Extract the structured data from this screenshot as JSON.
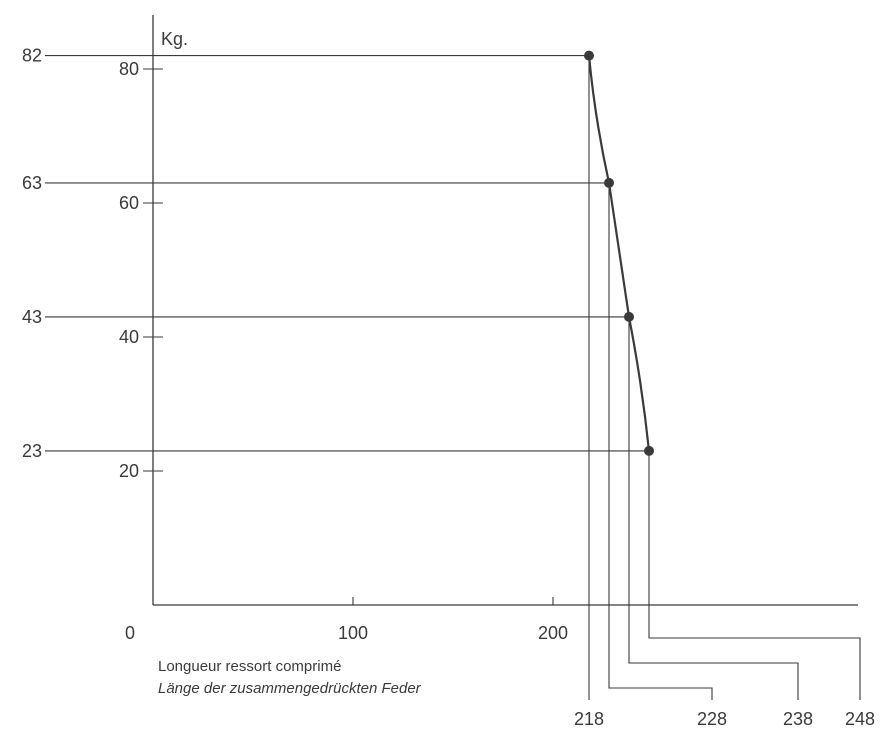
{
  "chart_data": {
    "type": "line",
    "title": "",
    "xlabel": "Longueur ressort comprimé",
    "xlabel_de": "Länge der zusammengedrückten Feder",
    "ylabel": "Kg.",
    "origin_label": "0",
    "xlim": [
      0,
      350
    ],
    "ylim": [
      0,
      92
    ],
    "x_ticks": [
      "100",
      "200"
    ],
    "y_ticks": [
      "20",
      "40",
      "60",
      "80"
    ],
    "grid": false,
    "series": [
      {
        "points": [
          {
            "x": 218,
            "y": 82,
            "x_label": "218",
            "y_label": "82"
          },
          {
            "x": 228,
            "y": 63,
            "x_label": "228",
            "y_label": "63"
          },
          {
            "x": 238,
            "y": 43,
            "x_label": "238",
            "y_label": "43"
          },
          {
            "x": 248,
            "y": 23,
            "x_label": "248",
            "y_label": "23"
          }
        ]
      }
    ]
  }
}
